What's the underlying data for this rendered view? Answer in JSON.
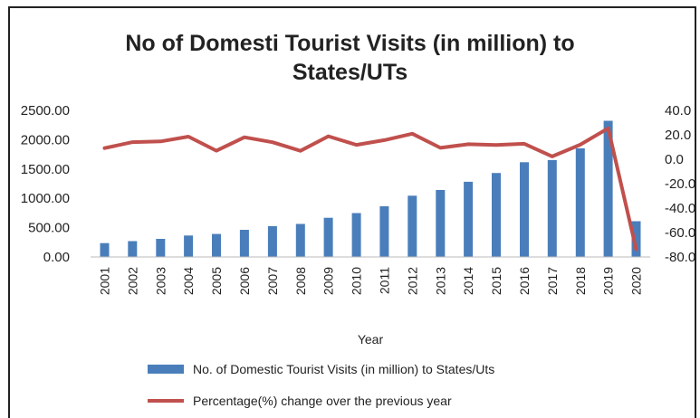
{
  "chart_data": {
    "type": "bar",
    "title_lines": [
      "No of Domesti Tourist Visits (in million) to",
      "States/UTs"
    ],
    "xlabel": "Year",
    "categories": [
      "2001",
      "2002",
      "2003",
      "2004",
      "2005",
      "2006",
      "2007",
      "2008",
      "2009",
      "2010",
      "2011",
      "2012",
      "2013",
      "2014",
      "2015",
      "2016",
      "2017",
      "2018",
      "2019",
      "2020"
    ],
    "y_left": {
      "range": [
        0,
        2500
      ],
      "ticks": [
        "0.00",
        "500.00",
        "1000.00",
        "1500.00",
        "2000.00",
        "2500.00"
      ]
    },
    "y_right": {
      "range": [
        -80,
        40
      ],
      "ticks": [
        "-80.0",
        "-60.0",
        "-40.0",
        "-20.0",
        "0.0",
        "20.0",
        "40.0"
      ]
    },
    "grid": false,
    "legend_position": "bottom",
    "series": [
      {
        "name": "No. of Domestic Tourist Visits (in million) to States/Uts",
        "kind": "bar",
        "axis": "left",
        "color": "#4a7ebb",
        "values": [
          236.5,
          269.6,
          309.0,
          366.2,
          392.0,
          462.3,
          526.7,
          563.0,
          668.8,
          747.7,
          864.5,
          1045.0,
          1142.5,
          1282.8,
          1432.0,
          1615.4,
          1652.5,
          1853.8,
          2321.9,
          610.2
        ]
      },
      {
        "name": "Percentage(%) change over the previous year",
        "kind": "line",
        "axis": "right",
        "color": "#c0504d",
        "values": [
          9.1,
          14.0,
          14.6,
          18.5,
          7.0,
          18.0,
          13.9,
          6.9,
          18.8,
          11.8,
          15.6,
          20.9,
          9.3,
          12.3,
          11.6,
          12.7,
          2.3,
          11.9,
          25.3,
          -73.7
        ]
      }
    ]
  }
}
